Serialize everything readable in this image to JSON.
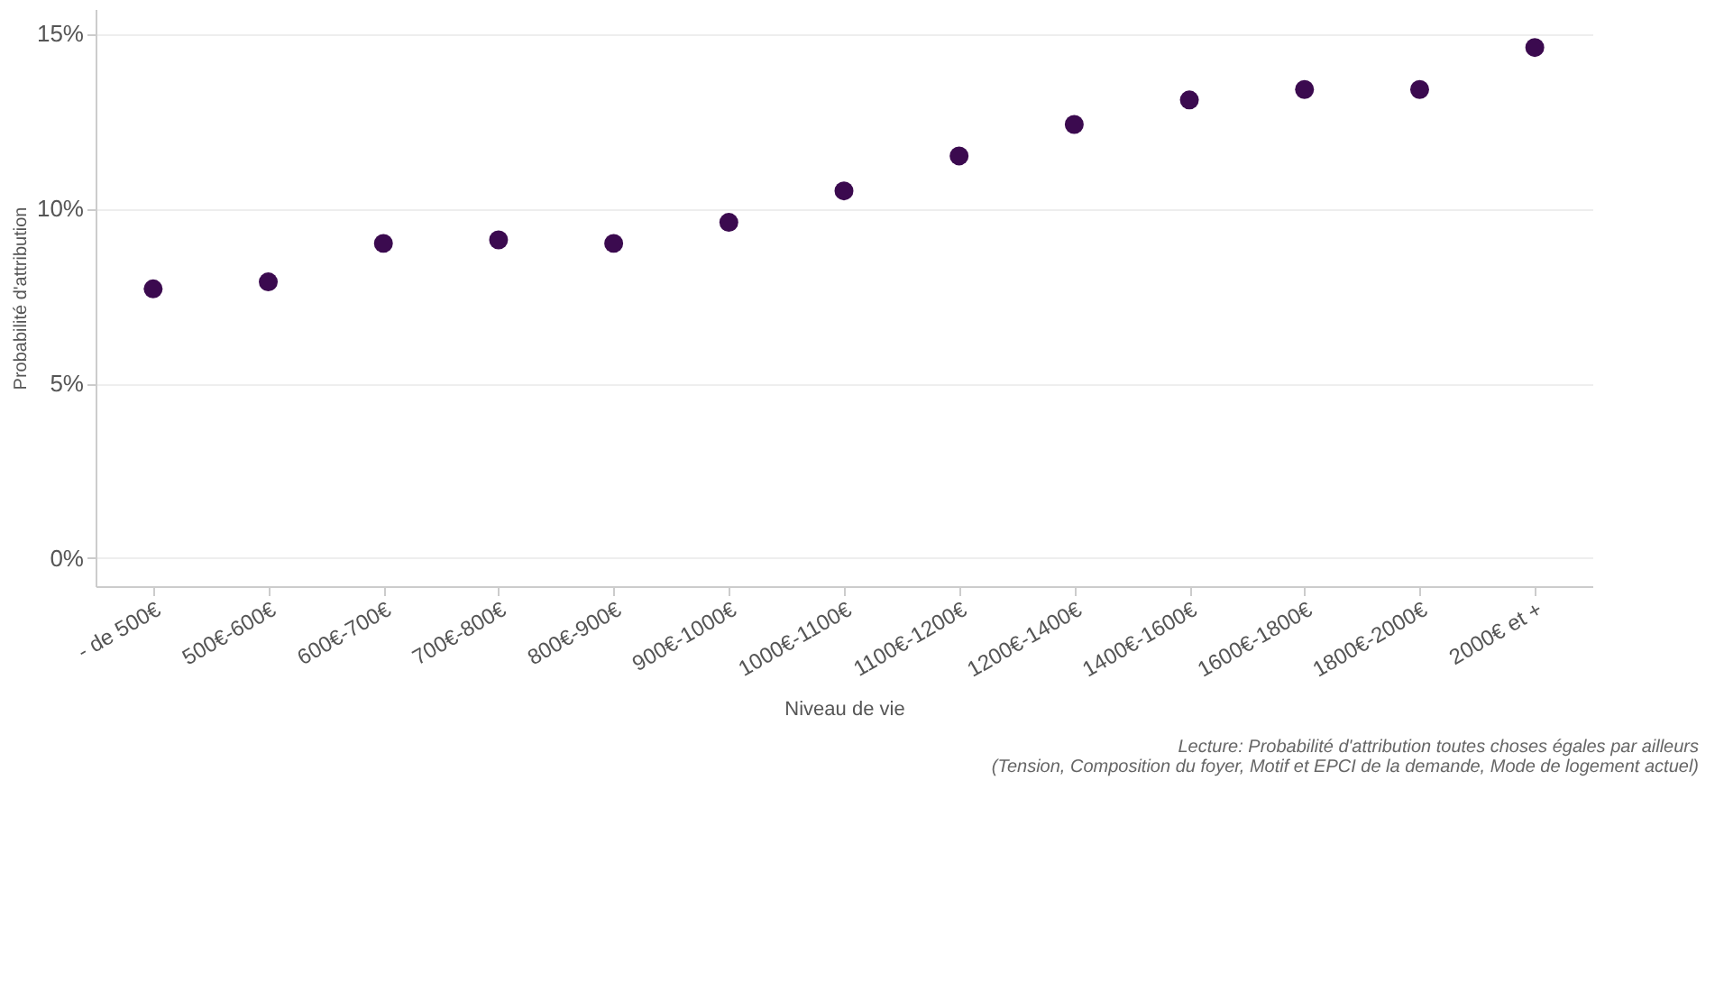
{
  "chart_data": {
    "type": "scatter",
    "xlabel": "Niveau de vie",
    "ylabel": "Probabilité d'attribution",
    "categories": [
      "- de 500€",
      "500€-600€",
      "600€-700€",
      "700€-800€",
      "800€-900€",
      "900€-1000€",
      "1000€-1100€",
      "1100€-1200€",
      "1200€-1400€",
      "1400€-1600€",
      "1600€-1800€",
      "1800€-2000€",
      "2000€ et +"
    ],
    "series": [
      {
        "color": "#3b0a4f",
        "values": [
          7.7,
          7.9,
          9.0,
          9.1,
          9.0,
          9.6,
          10.5,
          11.5,
          12.4,
          13.1,
          13.4,
          13.4,
          14.6
        ]
      }
    ],
    "ylim": [
      -0.8,
      15.7
    ],
    "yticks": [
      {
        "value": 0,
        "label": "0%"
      },
      {
        "value": 5,
        "label": "5%"
      },
      {
        "value": 10,
        "label": "10%"
      },
      {
        "value": 15,
        "label": "15%"
      }
    ],
    "grid": "y",
    "marker": "circle",
    "annotations": [
      "Lecture: Probabilité d'attribution toutes choses égales par ailleurs",
      "(Tension, Composition du foyer, Motif et EPCI de la demande, Mode de logement actuel)"
    ]
  }
}
